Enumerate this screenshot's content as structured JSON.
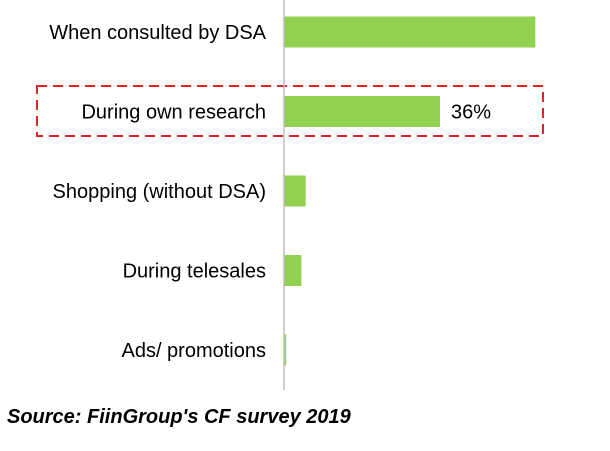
{
  "chart_data": {
    "type": "bar",
    "orientation": "horizontal",
    "categories": [
      "When consulted by DSA",
      "During own research",
      "Shopping (without DSA)",
      "During telesales",
      "Ads/ promotions"
    ],
    "values": [
      58,
      36,
      5,
      4,
      0.5
    ],
    "data_labels": [
      "",
      "36%",
      "",
      "",
      ""
    ],
    "highlighted_category": "During own research",
    "xlim": [
      0,
      60
    ],
    "grid": false,
    "legend": "none",
    "colors": {
      "bar": "#92d050",
      "axis": "#bfbfbf",
      "highlight_border": "#e0262b"
    }
  },
  "source": "Source: FiinGroup's CF survey 2019"
}
